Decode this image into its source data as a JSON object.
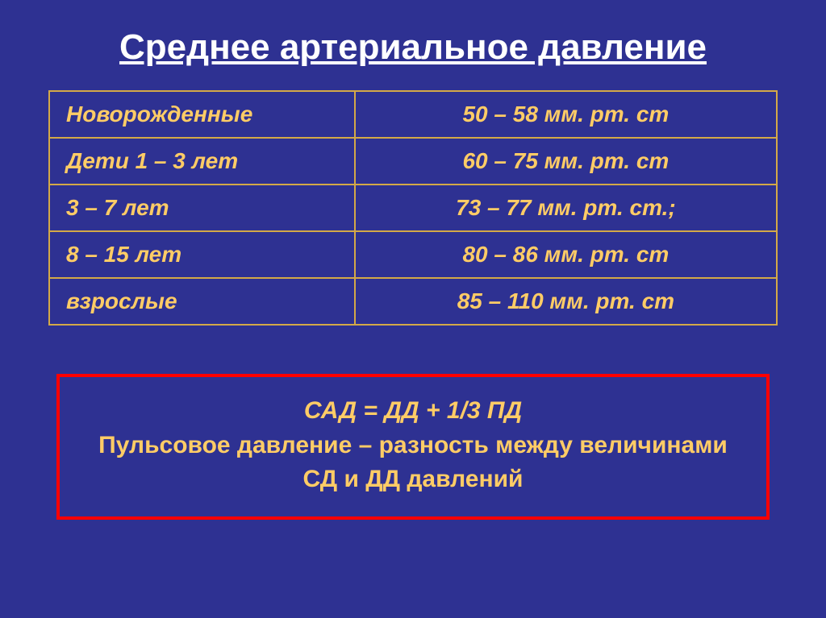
{
  "title": "Среднее артериальное давление",
  "table": {
    "rows": [
      {
        "label": "Новорожденные",
        "value": "50 – 58 мм. рт. ст"
      },
      {
        "label": "Дети 1 – 3 лет",
        "value": "60 – 75 мм. рт. ст"
      },
      {
        "label": "3 – 7 лет",
        "value": "73 – 77 мм. рт. ст.;"
      },
      {
        "label": "8 – 15 лет",
        "value": "80 – 86 мм. рт. ст"
      },
      {
        "label": "взрослые",
        "value": "85 – 110 мм. рт. ст"
      }
    ]
  },
  "formula": {
    "line1": "САД = ДД + 1/3 ПД",
    "line2": "Пульсовое давление – разность между величинами СД и ДД давлений"
  },
  "colors": {
    "background": "#2e3192",
    "title_text": "#ffffff",
    "table_border": "#d4a947",
    "table_text": "#ffcc66",
    "formula_border": "#ff0000",
    "formula_text": "#ffcc66"
  },
  "typography": {
    "title_fontsize": 44,
    "table_fontsize": 28,
    "formula_fontsize": 30,
    "font_family": "Arial"
  },
  "layout": {
    "table_col1_width": "42%",
    "table_col2_width": "58%",
    "formula_border_width": 4
  }
}
